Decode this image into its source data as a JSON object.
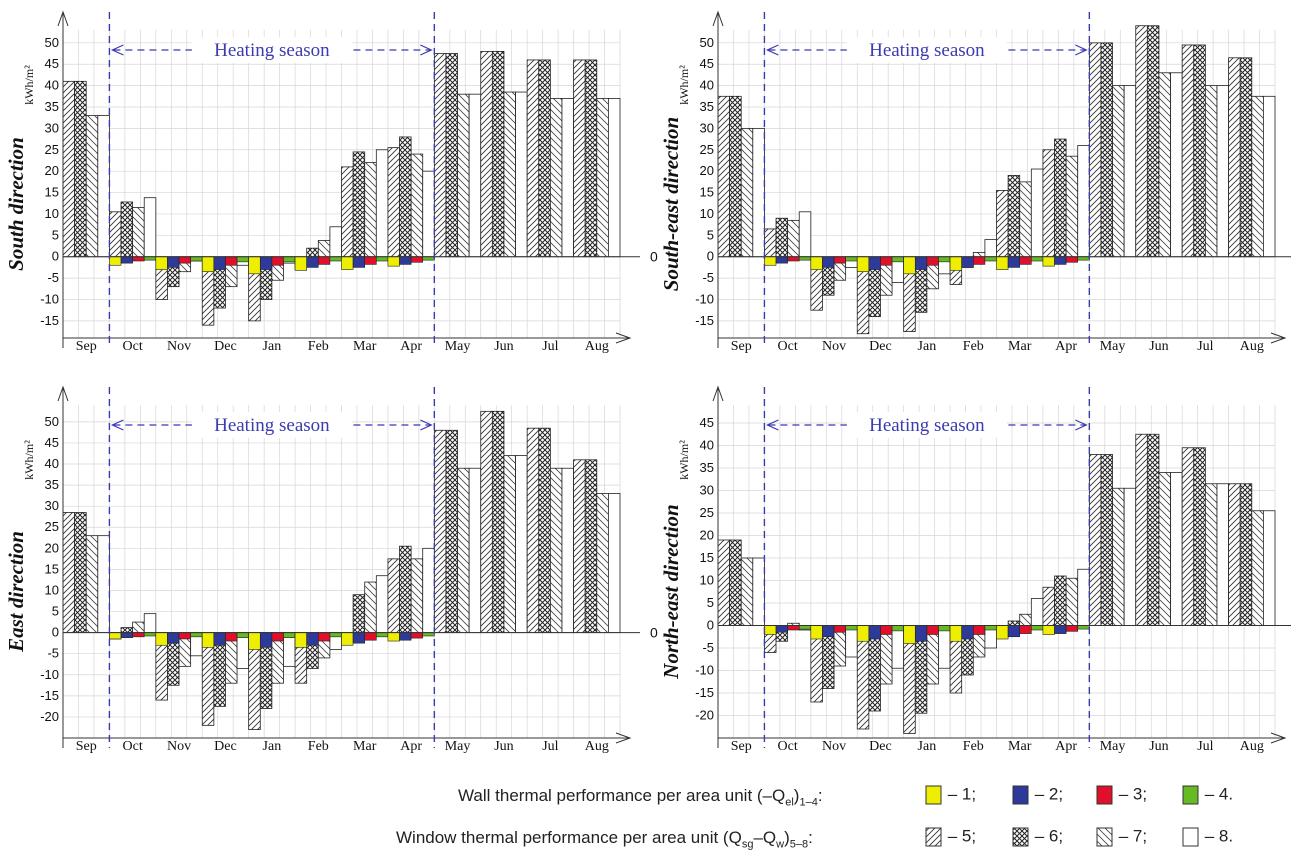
{
  "colors": {
    "wall1": "#eeee00",
    "wall2": "#2e3a9a",
    "wall3": "#e0102a",
    "wall4": "#66bb22",
    "dash": "#3b3bb0",
    "grid": "#d6d6d6"
  },
  "common": {
    "months": [
      "Sep",
      "Oct",
      "Nov",
      "Dec",
      "Jan",
      "Feb",
      "Mar",
      "Apr",
      "May",
      "Jun",
      "Jul",
      "Aug"
    ],
    "heating_label": "Heating season",
    "ylabel": "kWh/m²",
    "zero_label": "0"
  },
  "chart_data": [
    {
      "type": "bar",
      "title": "South direction",
      "yticks": [
        "50",
        "45",
        "40",
        "35",
        "30",
        "25",
        "20",
        "15",
        "10",
        "5",
        "0",
        "-5",
        "-10",
        "-15"
      ],
      "ylim": [
        -19,
        53
      ],
      "categories": [
        "Sep",
        "Oct",
        "Nov",
        "Dec",
        "Jan",
        "Feb",
        "Mar",
        "Apr",
        "May",
        "Jun",
        "Jul",
        "Aug"
      ],
      "wall_series": [
        {
          "name": "1",
          "values": [
            0,
            -2,
            -3,
            -3.5,
            -4,
            -3.2,
            -3,
            -2.2,
            0,
            0,
            0,
            0
          ]
        },
        {
          "name": "2",
          "values": [
            0,
            -1.5,
            -2.5,
            -3,
            -3,
            -2.5,
            -2.5,
            -1.8,
            0,
            0,
            0,
            0
          ]
        },
        {
          "name": "3",
          "values": [
            0,
            -1,
            -1.5,
            -2,
            -2,
            -1.8,
            -1.8,
            -1.3,
            0,
            0,
            0,
            0
          ]
        },
        {
          "name": "4",
          "values": [
            0,
            -0.8,
            -1,
            -1.2,
            -1.2,
            -1,
            -1,
            -0.8,
            0,
            0,
            0,
            0
          ]
        }
      ],
      "window_series": [
        {
          "name": "5",
          "values": [
            41,
            10.5,
            -10,
            -16,
            -15,
            -3,
            21,
            25.5,
            47.5,
            48,
            46,
            46
          ]
        },
        {
          "name": "6",
          "values": [
            41,
            12.8,
            -7,
            -12,
            -10,
            2,
            24.5,
            28,
            47.5,
            48,
            46,
            46
          ]
        },
        {
          "name": "7",
          "values": [
            33,
            11.5,
            -3.5,
            -7,
            -5.5,
            3.8,
            22,
            24,
            38,
            38.5,
            37,
            37
          ]
        },
        {
          "name": "8",
          "values": [
            33,
            13.8,
            -1,
            -2,
            -1.5,
            7,
            25,
            20,
            38,
            38.5,
            37,
            37
          ]
        }
      ]
    },
    {
      "type": "bar",
      "title": "South-east direction",
      "yticks": [
        "50",
        "45",
        "40",
        "35",
        "30",
        "25",
        "20",
        "15",
        "10",
        "5",
        "0",
        "-5",
        "-10",
        "-15"
      ],
      "ylim": [
        -19,
        53
      ],
      "categories": [
        "Sep",
        "Oct",
        "Nov",
        "Dec",
        "Jan",
        "Feb",
        "Mar",
        "Apr",
        "May",
        "Jun",
        "Jul",
        "Aug"
      ],
      "wall_series": [
        {
          "name": "1",
          "values": [
            0,
            -2,
            -3,
            -3.5,
            -4,
            -3.2,
            -3,
            -2.2,
            0,
            0,
            0,
            0
          ]
        },
        {
          "name": "2",
          "values": [
            0,
            -1.5,
            -2.5,
            -3,
            -3,
            -2.5,
            -2.5,
            -1.8,
            0,
            0,
            0,
            0
          ]
        },
        {
          "name": "3",
          "values": [
            0,
            -1,
            -1.5,
            -2,
            -2,
            -1.8,
            -1.8,
            -1.3,
            0,
            0,
            0,
            0
          ]
        },
        {
          "name": "4",
          "values": [
            0,
            -0.8,
            -1,
            -1.2,
            -1.2,
            -1,
            -1,
            -0.8,
            0,
            0,
            0,
            0
          ]
        }
      ],
      "window_series": [
        {
          "name": "5",
          "values": [
            37.5,
            6.5,
            -12.5,
            -18,
            -17.5,
            -6.5,
            15.5,
            25,
            50,
            54,
            49.5,
            46.5
          ]
        },
        {
          "name": "6",
          "values": [
            37.5,
            9,
            -9,
            -14,
            -13,
            -2.5,
            19,
            27.5,
            50,
            54,
            49.5,
            46.5
          ]
        },
        {
          "name": "7",
          "values": [
            30,
            8.5,
            -5.5,
            -9,
            -7.5,
            1,
            17.5,
            23.5,
            40,
            43,
            40,
            37.5
          ]
        },
        {
          "name": "8",
          "values": [
            30,
            10.5,
            -2.5,
            -6,
            -4,
            4,
            20.5,
            26,
            40,
            43,
            40,
            37.5
          ]
        }
      ]
    },
    {
      "type": "bar",
      "title": "East direction",
      "yticks": [
        "50",
        "45",
        "40",
        "35",
        "30",
        "25",
        "20",
        "15",
        "10",
        "5",
        "0",
        "-5",
        "-10",
        "-15",
        "-20"
      ],
      "ylim": [
        -25,
        54
      ],
      "categories": [
        "Sep",
        "Oct",
        "Nov",
        "Dec",
        "Jan",
        "Feb",
        "Mar",
        "Apr",
        "May",
        "Jun",
        "Jul",
        "Aug"
      ],
      "wall_series": [
        {
          "name": "1",
          "values": [
            0,
            -1.5,
            -3,
            -3.5,
            -4,
            -3.5,
            -3,
            -2,
            0,
            0,
            0,
            0
          ]
        },
        {
          "name": "2",
          "values": [
            0,
            -1.2,
            -2.5,
            -3,
            -3.5,
            -3,
            -2.5,
            -1.8,
            0,
            0,
            0,
            0
          ]
        },
        {
          "name": "3",
          "values": [
            0,
            -1,
            -1.5,
            -2,
            -2,
            -2,
            -1.8,
            -1.3,
            0,
            0,
            0,
            0
          ]
        },
        {
          "name": "4",
          "values": [
            0,
            -0.8,
            -1,
            -1.2,
            -1.2,
            -1,
            -1,
            -0.8,
            0,
            0,
            0,
            0
          ]
        }
      ],
      "window_series": [
        {
          "name": "5",
          "values": [
            28.5,
            -1.5,
            -16,
            -22,
            -23,
            -12,
            -0.5,
            17.5,
            48,
            52.5,
            48.5,
            41
          ]
        },
        {
          "name": "6",
          "values": [
            28.5,
            1.2,
            -12.5,
            -17.5,
            -18,
            -8.5,
            9,
            20.5,
            48,
            52.5,
            48.5,
            41
          ]
        },
        {
          "name": "7",
          "values": [
            23,
            2.5,
            -8,
            -12,
            -12,
            -6,
            12,
            17.5,
            39,
            42,
            39,
            33
          ]
        },
        {
          "name": "8",
          "values": [
            23,
            4.5,
            -5.5,
            -8.5,
            -8,
            -4,
            13.5,
            20,
            39,
            42,
            39,
            33
          ]
        }
      ]
    },
    {
      "type": "bar",
      "title": "North-east direction",
      "yticks": [
        "45",
        "40",
        "35",
        "30",
        "25",
        "20",
        "15",
        "10",
        "5",
        "0",
        "-5",
        "-10",
        "-15",
        "-20"
      ],
      "ylim": [
        -25,
        49
      ],
      "categories": [
        "Sep",
        "Oct",
        "Nov",
        "Dec",
        "Jan",
        "Feb",
        "Mar",
        "Apr",
        "May",
        "Jun",
        "Jul",
        "Aug"
      ],
      "wall_series": [
        {
          "name": "1",
          "values": [
            0,
            -2,
            -3,
            -3.5,
            -4,
            -3.5,
            -3,
            -2,
            0,
            0,
            0,
            0
          ]
        },
        {
          "name": "2",
          "values": [
            0,
            -1.5,
            -2.5,
            -3,
            -3.5,
            -3,
            -2.5,
            -1.8,
            0,
            0,
            0,
            0
          ]
        },
        {
          "name": "3",
          "values": [
            0,
            -1,
            -1.5,
            -2,
            -2,
            -2,
            -1.8,
            -1.3,
            0,
            0,
            0,
            0
          ]
        },
        {
          "name": "4",
          "values": [
            0,
            -0.8,
            -1,
            -1.2,
            -1.2,
            -1,
            -1,
            -0.8,
            0,
            0,
            0,
            0
          ]
        }
      ],
      "window_series": [
        {
          "name": "5",
          "values": [
            19,
            -6,
            -17,
            -23,
            -24,
            -15,
            -2,
            8.5,
            38,
            42.5,
            39.5,
            31.5
          ]
        },
        {
          "name": "6",
          "values": [
            19,
            -3.5,
            -14,
            -19,
            -19.5,
            -11,
            1,
            11,
            38,
            42.5,
            39.5,
            31.5
          ]
        },
        {
          "name": "7",
          "values": [
            15,
            0.5,
            -9,
            -13,
            -13,
            -7,
            2.5,
            10.5,
            30.5,
            34,
            31.5,
            25.5
          ]
        },
        {
          "name": "8",
          "values": [
            15,
            -1,
            -7,
            -9.5,
            -9.5,
            -5,
            6,
            12.5,
            30.5,
            34,
            31.5,
            25.5
          ]
        }
      ]
    }
  ],
  "legend": {
    "wall_label": "Wall thermal performance per area unit (–Q",
    "wall_sub1": "el",
    "wall_paren": ")",
    "wall_sub2": "1–4",
    "wall_colon": ":",
    "wall_items": [
      "– 1;",
      "– 2;",
      "– 3;",
      "– 4."
    ],
    "window_label": "Window thermal performance per area unit (Q",
    "window_sub1": "sg",
    "window_mid": "–Q",
    "window_sub2": "w",
    "window_paren": ")",
    "window_sub3": "5–8",
    "window_colon": ":",
    "window_items": [
      "– 5;",
      "– 6;",
      "– 7;",
      "– 8."
    ]
  }
}
